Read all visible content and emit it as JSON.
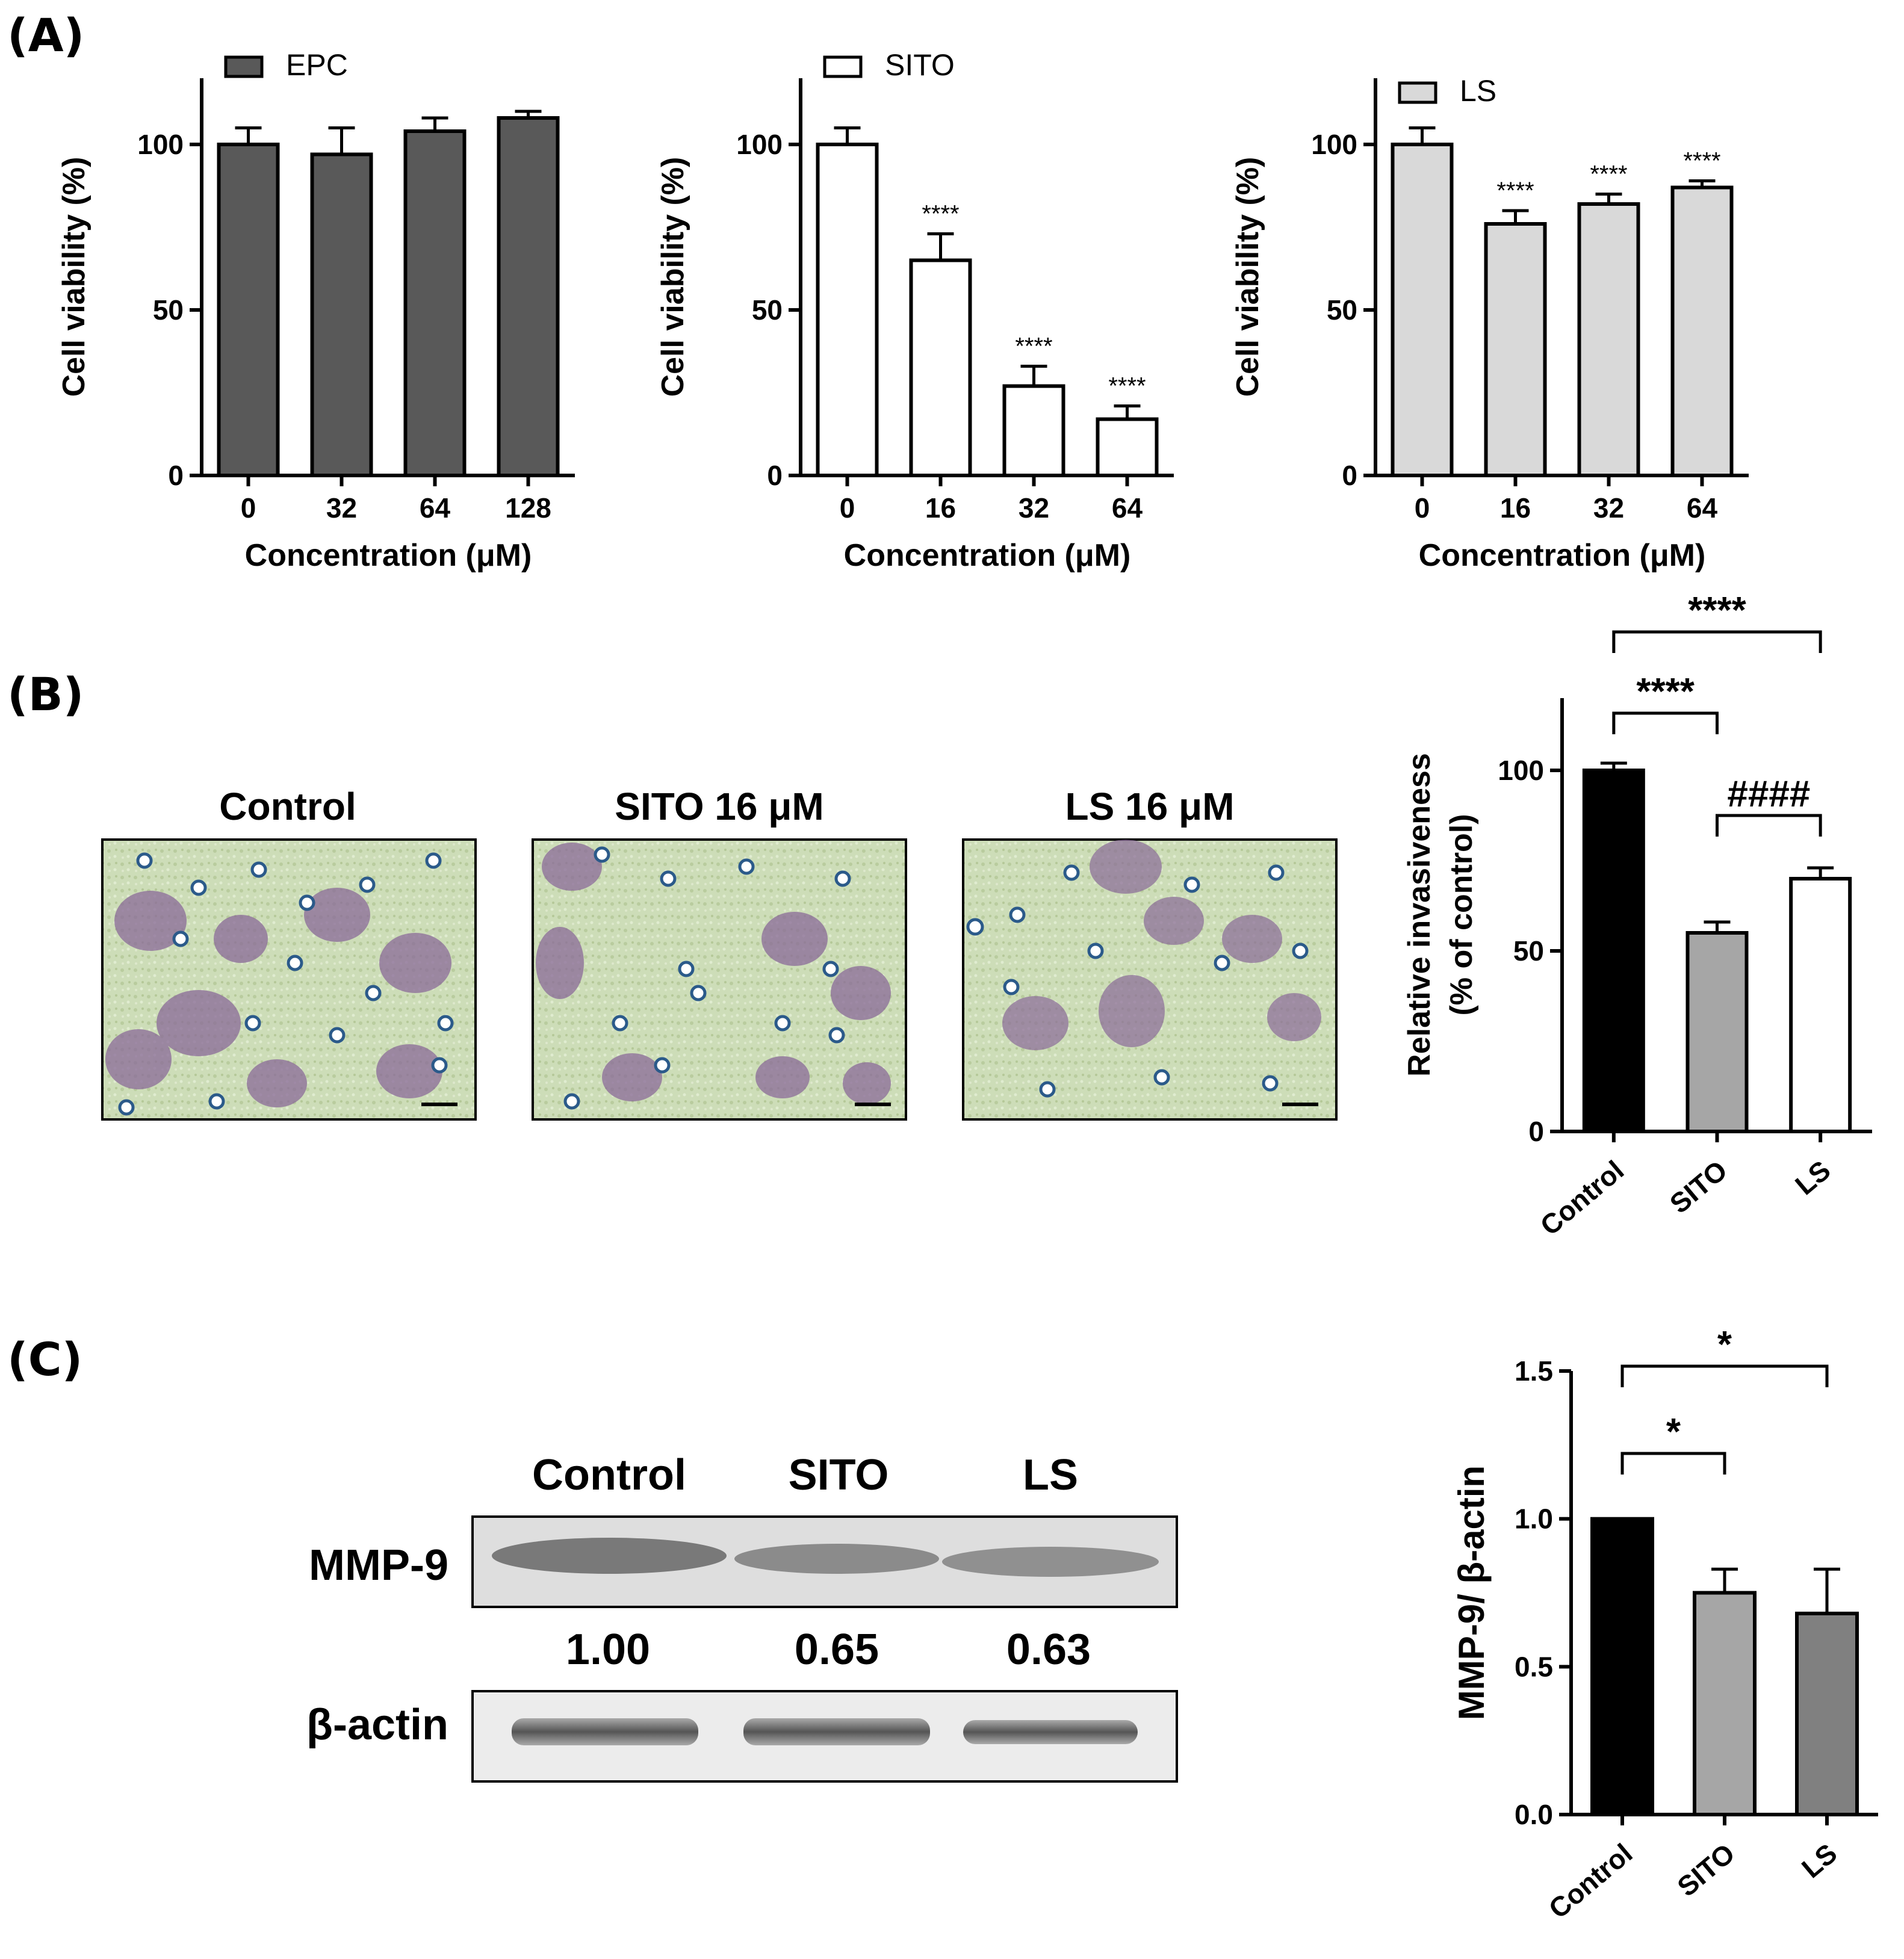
{
  "panel_labels": [
    "(A)",
    "(B)",
    "(C)"
  ],
  "chart_data": [
    {
      "type": "bar",
      "panel": "A",
      "ylabel": "Cell viability (%)",
      "xlabel": "Concentration (μM)",
      "ylim": [
        0,
        120
      ],
      "yticks": [
        0,
        50,
        100
      ],
      "categories": [
        "0",
        "32",
        "64",
        "128"
      ],
      "series": [
        {
          "name": "EPC",
          "values": [
            100,
            97,
            104,
            108
          ],
          "errors": [
            5,
            8,
            4,
            2
          ]
        }
      ],
      "bar_color": "#595959",
      "annotations": [
        "",
        "",
        "",
        ""
      ]
    },
    {
      "type": "bar",
      "panel": "A",
      "ylabel": "Cell viability (%)",
      "xlabel": "Concentration (μM)",
      "ylim": [
        0,
        120
      ],
      "yticks": [
        0,
        50,
        100
      ],
      "categories": [
        "0",
        "16",
        "32",
        "64"
      ],
      "series": [
        {
          "name": "SITO",
          "values": [
            100,
            65,
            27,
            17
          ],
          "errors": [
            5,
            8,
            6,
            4
          ]
        }
      ],
      "bar_color": "#ffffff",
      "annotations": [
        "",
        "****",
        "****",
        "****"
      ]
    },
    {
      "type": "bar",
      "panel": "A",
      "ylabel": "Cell viability (%)",
      "xlabel": "Concentration (μM)",
      "ylim": [
        0,
        120
      ],
      "yticks": [
        0,
        50,
        100
      ],
      "categories": [
        "0",
        "16",
        "32",
        "64"
      ],
      "series": [
        {
          "name": "LS",
          "values": [
            100,
            76,
            82,
            87
          ],
          "errors": [
            5,
            4,
            3,
            2
          ]
        }
      ],
      "bar_color": "#d9d9d9",
      "annotations": [
        "",
        "****",
        "****",
        "****"
      ]
    },
    {
      "type": "bar",
      "panel": "B",
      "ylabel": "Relative invasiveness\n(% of control)",
      "ylim": [
        0,
        120
      ],
      "yticks": [
        0,
        50,
        100
      ],
      "categories": [
        "Control",
        "SITO",
        "LS"
      ],
      "values": [
        100,
        55,
        70
      ],
      "errors": [
        2,
        3,
        3
      ],
      "colors": [
        "#000000",
        "#a6a6a6",
        "#ffffff"
      ],
      "brackets": [
        {
          "from": 0,
          "to": 1,
          "label": "****"
        },
        {
          "from": 0,
          "to": 2,
          "label": "****"
        },
        {
          "from": 1,
          "to": 2,
          "label": "####"
        }
      ]
    },
    {
      "type": "bar",
      "panel": "C",
      "ylabel": "MMP-9/ β-actin",
      "ylim": [
        0,
        1.5
      ],
      "yticks": [
        "0.0",
        "0.5",
        "1.0",
        "1.5"
      ],
      "categories": [
        "Control",
        "SITO",
        "LS"
      ],
      "values": [
        1.0,
        0.75,
        0.68
      ],
      "errors": [
        0,
        0.08,
        0.15
      ],
      "colors": [
        "#000000",
        "#a6a6a6",
        "#808080"
      ],
      "brackets": [
        {
          "from": 0,
          "to": 1,
          "label": "*"
        },
        {
          "from": 0,
          "to": 2,
          "label": "*"
        }
      ]
    }
  ],
  "micrographs": {
    "titles": [
      "Control",
      "SITO 16 μM",
      "LS 16 μM"
    ]
  },
  "western_blot": {
    "lanes": [
      "Control",
      "SITO",
      "LS"
    ],
    "rows": [
      "MMP-9",
      "β-actin"
    ],
    "ratios": [
      "1.00",
      "0.65",
      "0.63"
    ]
  }
}
